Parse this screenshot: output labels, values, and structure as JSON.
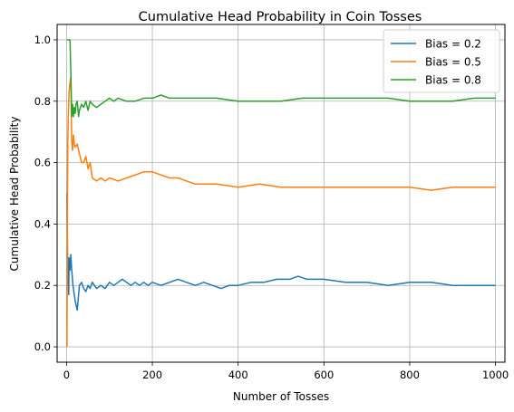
{
  "chart_data": {
    "type": "line",
    "title": "Cumulative Head Probability in Coin Tosses",
    "xlabel": "Number of Tosses",
    "ylabel": "Cumulative Head Probability",
    "xlim": [
      -22,
      1022
    ],
    "ylim": [
      -0.05,
      1.05
    ],
    "xticks": [
      0,
      200,
      400,
      600,
      800,
      1000
    ],
    "yticks": [
      0.0,
      0.2,
      0.4,
      0.6,
      0.8,
      1.0
    ],
    "xtick_labels": [
      "0",
      "200",
      "400",
      "600",
      "800",
      "1000"
    ],
    "ytick_labels": [
      "0.0",
      "0.2",
      "0.4",
      "0.6",
      "0.8",
      "1.0"
    ],
    "grid": true,
    "legend_position": "top-right",
    "series": [
      {
        "name": "Bias = 0.2",
        "color": "#1f77b4",
        "x": [
          1,
          2,
          3,
          4,
          5,
          6,
          8,
          10,
          12,
          15,
          18,
          20,
          25,
          30,
          35,
          40,
          45,
          50,
          55,
          60,
          70,
          80,
          90,
          100,
          110,
          120,
          130,
          140,
          150,
          160,
          170,
          180,
          190,
          200,
          220,
          240,
          260,
          280,
          300,
          320,
          340,
          360,
          380,
          400,
          430,
          460,
          490,
          520,
          540,
          560,
          600,
          650,
          700,
          750,
          800,
          850,
          900,
          950,
          1000
        ],
        "y": [
          0.5,
          0.33,
          0.25,
          0.2,
          0.17,
          0.29,
          0.25,
          0.3,
          0.25,
          0.2,
          0.17,
          0.15,
          0.12,
          0.2,
          0.21,
          0.19,
          0.18,
          0.2,
          0.19,
          0.21,
          0.19,
          0.2,
          0.19,
          0.21,
          0.2,
          0.21,
          0.22,
          0.21,
          0.2,
          0.21,
          0.2,
          0.21,
          0.2,
          0.21,
          0.2,
          0.21,
          0.22,
          0.21,
          0.2,
          0.21,
          0.2,
          0.19,
          0.2,
          0.2,
          0.21,
          0.21,
          0.22,
          0.22,
          0.23,
          0.22,
          0.22,
          0.21,
          0.21,
          0.2,
          0.21,
          0.21,
          0.2,
          0.2,
          0.2
        ]
      },
      {
        "name": "Bias = 0.5",
        "color": "#ff7f0e",
        "x": [
          1,
          2,
          3,
          4,
          5,
          6,
          8,
          10,
          12,
          14,
          16,
          18,
          20,
          25,
          30,
          35,
          40,
          45,
          50,
          55,
          60,
          70,
          80,
          90,
          100,
          120,
          140,
          160,
          180,
          200,
          220,
          240,
          260,
          280,
          300,
          350,
          400,
          450,
          500,
          550,
          600,
          650,
          700,
          750,
          800,
          850,
          900,
          950,
          1000
        ],
        "y": [
          0.0,
          0.5,
          0.67,
          0.75,
          0.8,
          0.83,
          0.86,
          0.88,
          0.67,
          0.64,
          0.69,
          0.66,
          0.65,
          0.66,
          0.63,
          0.6,
          0.6,
          0.62,
          0.58,
          0.6,
          0.55,
          0.54,
          0.55,
          0.54,
          0.55,
          0.54,
          0.55,
          0.56,
          0.57,
          0.57,
          0.56,
          0.55,
          0.55,
          0.54,
          0.53,
          0.53,
          0.52,
          0.53,
          0.52,
          0.52,
          0.52,
          0.52,
          0.52,
          0.52,
          0.52,
          0.51,
          0.52,
          0.52,
          0.52
        ]
      },
      {
        "name": "Bias = 0.8",
        "color": "#2ca02c",
        "x": [
          1,
          2,
          3,
          4,
          5,
          6,
          7,
          8,
          10,
          12,
          14,
          16,
          18,
          20,
          22,
          25,
          28,
          30,
          35,
          40,
          45,
          50,
          55,
          60,
          70,
          80,
          90,
          100,
          110,
          120,
          140,
          160,
          180,
          200,
          220,
          240,
          260,
          280,
          300,
          350,
          400,
          450,
          500,
          550,
          600,
          650,
          700,
          750,
          800,
          850,
          900,
          950,
          1000
        ],
        "y": [
          1.0,
          1.0,
          1.0,
          1.0,
          1.0,
          1.0,
          1.0,
          1.0,
          0.9,
          0.75,
          0.79,
          0.75,
          0.78,
          0.76,
          0.79,
          0.8,
          0.75,
          0.77,
          0.79,
          0.78,
          0.8,
          0.77,
          0.8,
          0.79,
          0.78,
          0.79,
          0.8,
          0.81,
          0.8,
          0.81,
          0.8,
          0.8,
          0.81,
          0.81,
          0.82,
          0.81,
          0.81,
          0.81,
          0.81,
          0.81,
          0.8,
          0.8,
          0.8,
          0.81,
          0.81,
          0.81,
          0.81,
          0.81,
          0.8,
          0.8,
          0.8,
          0.81,
          0.81
        ]
      }
    ]
  }
}
